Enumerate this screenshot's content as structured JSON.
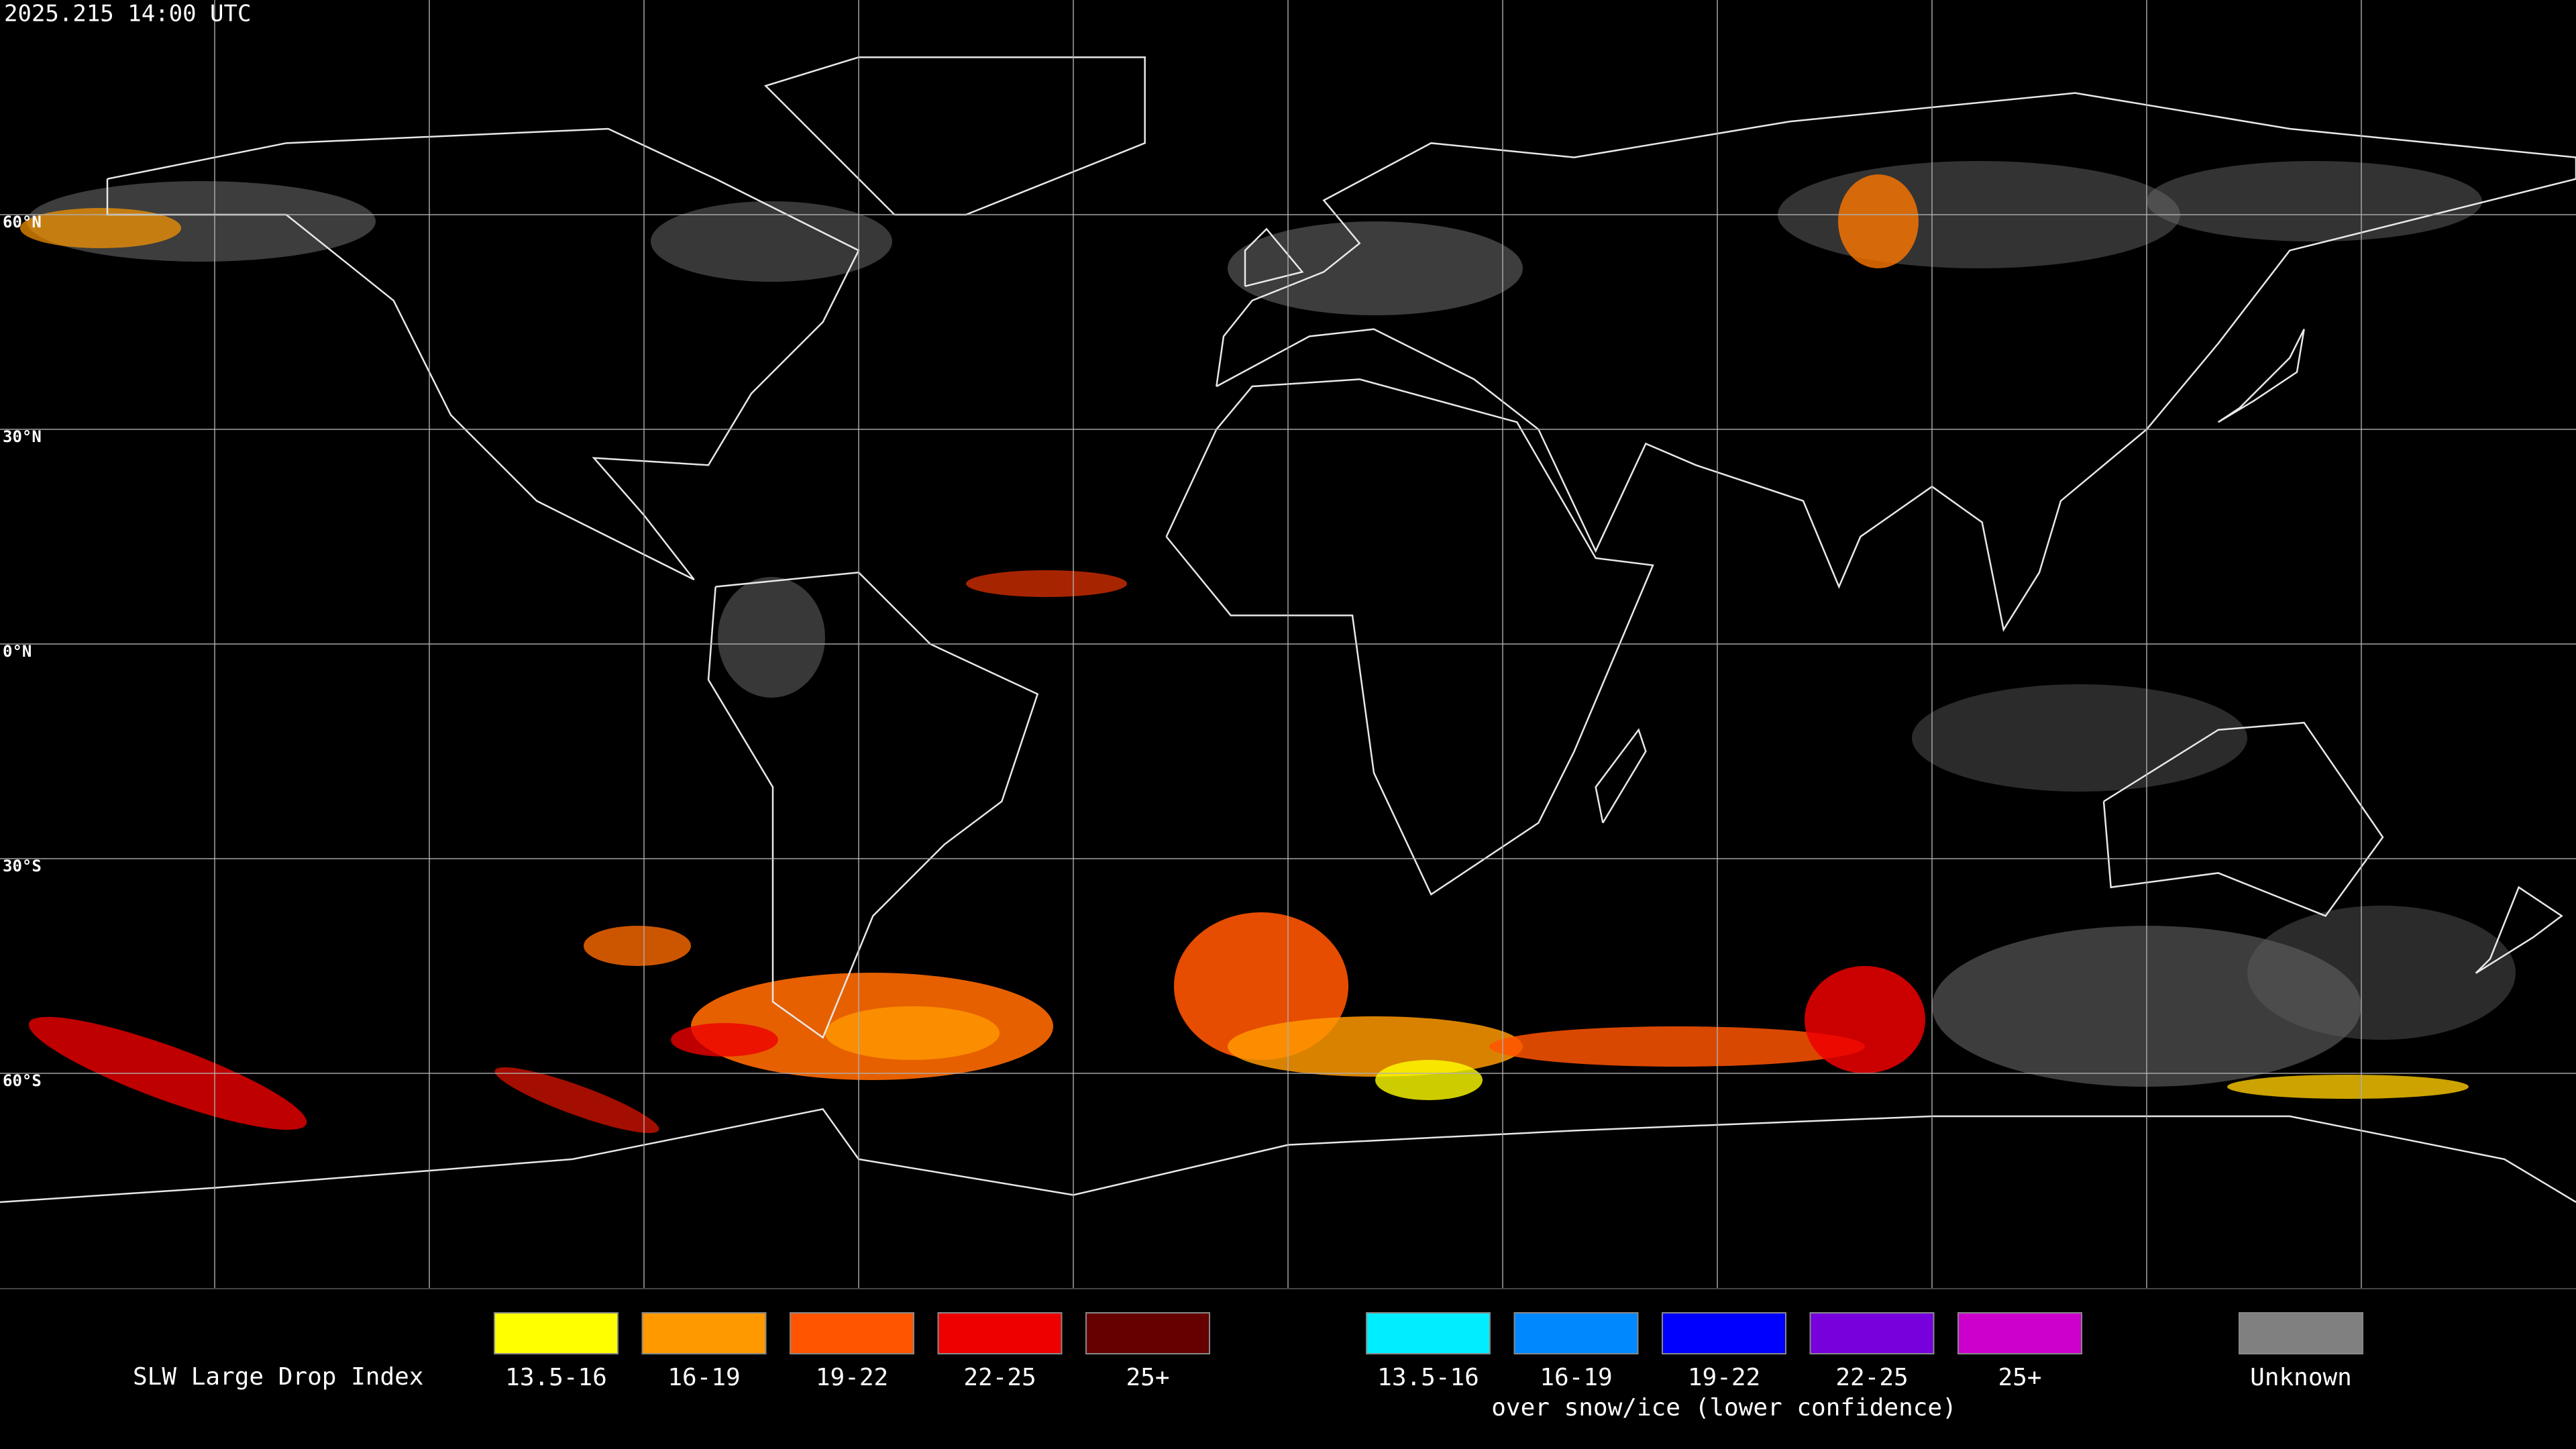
{
  "timestamp": "2025.215 14:00 UTC",
  "latitude_labels": [
    "60°N",
    "30°N",
    "0°N",
    "30°S",
    "60°S"
  ],
  "legend": {
    "title": "SLW Large Drop Index",
    "groups": [
      {
        "items": [
          {
            "label": "13.5-16",
            "color": "#ffff00"
          },
          {
            "label": "16-19",
            "color": "#ff9900"
          },
          {
            "label": "19-22",
            "color": "#ff5500"
          },
          {
            "label": "22-25",
            "color": "#ee0000"
          },
          {
            "label": "25+",
            "color": "#660000"
          }
        ]
      },
      {
        "items": [
          {
            "label": "13.5-16",
            "color": "#00eeff"
          },
          {
            "label": "16-19",
            "color": "#0088ff"
          },
          {
            "label": "19-22",
            "color": "#0000ff"
          },
          {
            "label": "22-25",
            "color": "#7700dd"
          },
          {
            "label": "25+",
            "color": "#cc00cc"
          }
        ],
        "caption": "over snow/ice (lower confidence)"
      },
      {
        "items": [
          {
            "label": "Unknown",
            "color": "#808080"
          }
        ]
      }
    ]
  }
}
